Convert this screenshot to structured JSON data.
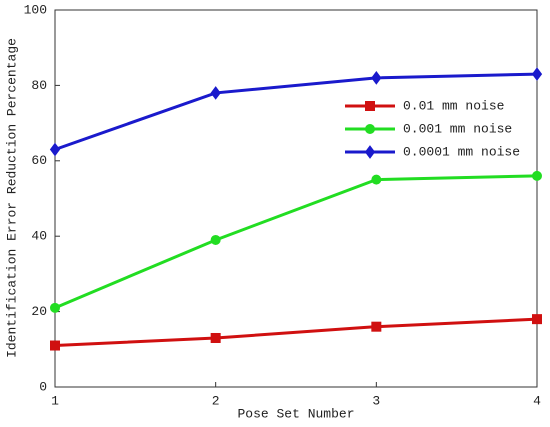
{
  "chart_data": {
    "type": "line",
    "x_label": "Pose Set Number",
    "y_label": "Identification Error Reduction Percentage",
    "x": [
      1,
      2,
      3,
      4
    ],
    "xlim": [
      1,
      4
    ],
    "xticks": [
      1,
      2,
      3,
      4
    ],
    "ylim": [
      0,
      100
    ],
    "yticks": [
      0,
      20,
      40,
      60,
      80,
      100
    ],
    "legend": "upper right",
    "series": [
      {
        "name": "0.01 mm noise",
        "color": "#d01010",
        "marker": "square",
        "values": [
          11,
          13,
          16,
          18
        ]
      },
      {
        "name": "0.001 mm noise",
        "color": "#22dd22",
        "marker": "circle",
        "values": [
          21,
          39,
          55,
          56
        ]
      },
      {
        "name": "0.0001 mm noise",
        "color": "#1a1acc",
        "marker": "diamond",
        "values": [
          63,
          78,
          82,
          83
        ]
      }
    ]
  }
}
